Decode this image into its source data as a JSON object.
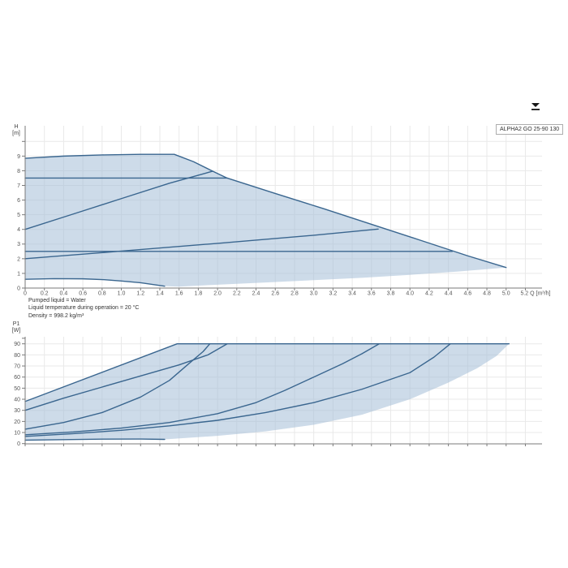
{
  "toolbar": {
    "download_icon": "download"
  },
  "legend": {
    "model": "ALPHA2 GO 25-90 130"
  },
  "info_lines": [
    "Pumped liquid = Water",
    "Liquid temperature during operation = 20 °C",
    "Density = 998.2 kg/m³"
  ],
  "chart_data": [
    {
      "type": "area",
      "name": "head-flow-curve",
      "ylabel_lines": [
        "H",
        "[m]"
      ],
      "xlabel": "Q [m³/h]",
      "x_unit_suffix": " Q [m³/h]",
      "xlim": [
        0,
        5.36
      ],
      "ylim": [
        0,
        11
      ],
      "grid": true,
      "x_ticks": [
        0,
        0.2,
        0.4,
        0.6,
        0.8,
        1.0,
        1.2,
        1.4,
        1.6,
        1.8,
        2.0,
        2.2,
        2.4,
        2.6,
        2.8,
        3.0,
        3.2,
        3.4,
        3.6,
        3.8,
        4.0,
        4.2,
        4.4,
        4.6,
        4.8,
        5.0,
        5.2
      ],
      "y_ticks": [
        0,
        1,
        2,
        3,
        4,
        5,
        6,
        7,
        8,
        9
      ],
      "y_grid_extra": [
        10
      ],
      "y_ticks_unlabeled": [
        10
      ],
      "envelope": [
        [
          0,
          8.85
        ],
        [
          0.4,
          9.0
        ],
        [
          0.8,
          9.08
        ],
        [
          1.2,
          9.12
        ],
        [
          1.55,
          9.12
        ],
        [
          1.75,
          8.62
        ],
        [
          1.95,
          7.97
        ],
        [
          2.1,
          7.5
        ],
        [
          2.6,
          6.45
        ],
        [
          3.1,
          5.42
        ],
        [
          3.6,
          4.35
        ],
        [
          4.1,
          3.28
        ],
        [
          4.6,
          2.2
        ],
        [
          5.0,
          1.4
        ],
        [
          4.5,
          1.13
        ],
        [
          4.0,
          0.9
        ],
        [
          3.5,
          0.7
        ],
        [
          3.0,
          0.54
        ],
        [
          2.5,
          0.38
        ],
        [
          2.0,
          0.23
        ],
        [
          1.6,
          0.1
        ],
        [
          1.45,
          0.13
        ],
        [
          1.2,
          0.36
        ],
        [
          1.0,
          0.48
        ],
        [
          0.8,
          0.58
        ],
        [
          0.6,
          0.63
        ],
        [
          0.3,
          0.64
        ],
        [
          0,
          0.6
        ]
      ],
      "series": [
        {
          "name": "max-speed-curve",
          "points": [
            [
              0,
              8.85
            ],
            [
              0.4,
              9.0
            ],
            [
              0.8,
              9.08
            ],
            [
              1.2,
              9.12
            ],
            [
              1.55,
              9.12
            ],
            [
              1.75,
              8.62
            ],
            [
              1.95,
              7.97
            ],
            [
              2.1,
              7.5
            ],
            [
              2.6,
              6.45
            ],
            [
              3.1,
              5.42
            ],
            [
              3.6,
              4.35
            ],
            [
              4.1,
              3.28
            ],
            [
              4.6,
              2.2
            ],
            [
              5.0,
              1.4
            ]
          ]
        },
        {
          "name": "constant-pressure-high-7.5m",
          "points": [
            [
              0,
              7.5
            ],
            [
              2.1,
              7.5
            ]
          ]
        },
        {
          "name": "proportional-pressure-high",
          "points": [
            [
              0,
              4.0
            ],
            [
              0.5,
              5.05
            ],
            [
              1.0,
              6.1
            ],
            [
              1.5,
              7.15
            ],
            [
              1.95,
              7.97
            ]
          ]
        },
        {
          "name": "constant-pressure-low-2.5m",
          "points": [
            [
              0,
              2.5
            ],
            [
              4.44,
              2.5
            ]
          ]
        },
        {
          "name": "proportional-pressure-low",
          "points": [
            [
              0,
              2.0
            ],
            [
              1.0,
              2.52
            ],
            [
              2.0,
              3.05
            ],
            [
              3.0,
              3.6
            ],
            [
              3.67,
              4.02
            ]
          ]
        },
        {
          "name": "min-speed-curve",
          "points": [
            [
              0,
              0.6
            ],
            [
              0.3,
              0.64
            ],
            [
              0.6,
              0.63
            ],
            [
              0.8,
              0.58
            ],
            [
              1.0,
              0.48
            ],
            [
              1.2,
              0.36
            ],
            [
              1.45,
              0.13
            ]
          ]
        }
      ]
    },
    {
      "type": "area",
      "name": "power-flow-curve",
      "ylabel_lines": [
        "P1",
        "[W]"
      ],
      "xlabel": "",
      "xlim": [
        0,
        5.36
      ],
      "ylim": [
        0,
        96
      ],
      "grid": true,
      "x_ticks": [
        0,
        0.2,
        0.4,
        0.6,
        0.8,
        1.0,
        1.2,
        1.4,
        1.6,
        1.8,
        2.0,
        2.2,
        2.4,
        2.6,
        2.8,
        3.0,
        3.2,
        3.4,
        3.6,
        3.8,
        4.0,
        4.2,
        4.4,
        4.6,
        4.8,
        5.0,
        5.2
      ],
      "y_ticks": [
        0,
        10,
        20,
        30,
        40,
        50,
        60,
        70,
        80,
        90
      ],
      "y_grid_extra": [],
      "y_ticks_unlabeled": [
        95
      ],
      "envelope": [
        [
          0,
          38
        ],
        [
          1.58,
          90
        ],
        [
          5.03,
          90
        ],
        [
          4.9,
          79
        ],
        [
          4.7,
          68
        ],
        [
          4.4,
          55
        ],
        [
          4.0,
          40
        ],
        [
          3.5,
          26
        ],
        [
          3.0,
          17
        ],
        [
          2.5,
          11
        ],
        [
          2.0,
          7
        ],
        [
          1.45,
          3.8
        ],
        [
          1.2,
          4.1
        ],
        [
          0.8,
          4.0
        ],
        [
          0.4,
          3.6
        ],
        [
          0,
          3.1
        ]
      ],
      "series": [
        {
          "name": "max-speed-power",
          "points": [
            [
              0,
              38
            ],
            [
              1.58,
              90
            ],
            [
              5.03,
              90
            ]
          ]
        },
        {
          "name": "constant-pressure-high-power",
          "points": [
            [
              0,
              30
            ],
            [
              0.4,
              41
            ],
            [
              0.8,
              51
            ],
            [
              1.2,
              61
            ],
            [
              1.6,
              71
            ],
            [
              1.9,
              80
            ],
            [
              2.1,
              90
            ]
          ]
        },
        {
          "name": "proportional-pressure-high-power",
          "points": [
            [
              0,
              13
            ],
            [
              0.4,
              19
            ],
            [
              0.8,
              28
            ],
            [
              1.2,
              42
            ],
            [
              1.5,
              57
            ],
            [
              1.7,
              72
            ],
            [
              1.85,
              83
            ],
            [
              1.92,
              90
            ]
          ]
        },
        {
          "name": "proportional-pressure-low-power",
          "points": [
            [
              0,
              8
            ],
            [
              0.5,
              10.5
            ],
            [
              1.0,
              14
            ],
            [
              1.5,
              19
            ],
            [
              2.0,
              27
            ],
            [
              2.4,
              37
            ],
            [
              2.7,
              48
            ],
            [
              3.0,
              60
            ],
            [
              3.3,
              72
            ],
            [
              3.5,
              81
            ],
            [
              3.68,
              90
            ]
          ]
        },
        {
          "name": "constant-pressure-low-power",
          "points": [
            [
              0,
              6.5
            ],
            [
              0.5,
              9
            ],
            [
              1.0,
              12
            ],
            [
              1.5,
              16
            ],
            [
              2.0,
              21
            ],
            [
              2.5,
              28
            ],
            [
              3.0,
              37
            ],
            [
              3.5,
              49
            ],
            [
              4.0,
              64
            ],
            [
              4.25,
              78
            ],
            [
              4.42,
              90
            ]
          ]
        },
        {
          "name": "min-speed-power",
          "points": [
            [
              0,
              3.1
            ],
            [
              0.4,
              3.6
            ],
            [
              0.8,
              4.0
            ],
            [
              1.2,
              4.1
            ],
            [
              1.45,
              3.8
            ]
          ]
        }
      ],
      "colors": {
        "fill": "#a4bdd7",
        "stroke": "#3a668f",
        "grid": "#e9e9e9",
        "axis": "#7a7a7a",
        "tick_text": "#555555"
      }
    }
  ]
}
